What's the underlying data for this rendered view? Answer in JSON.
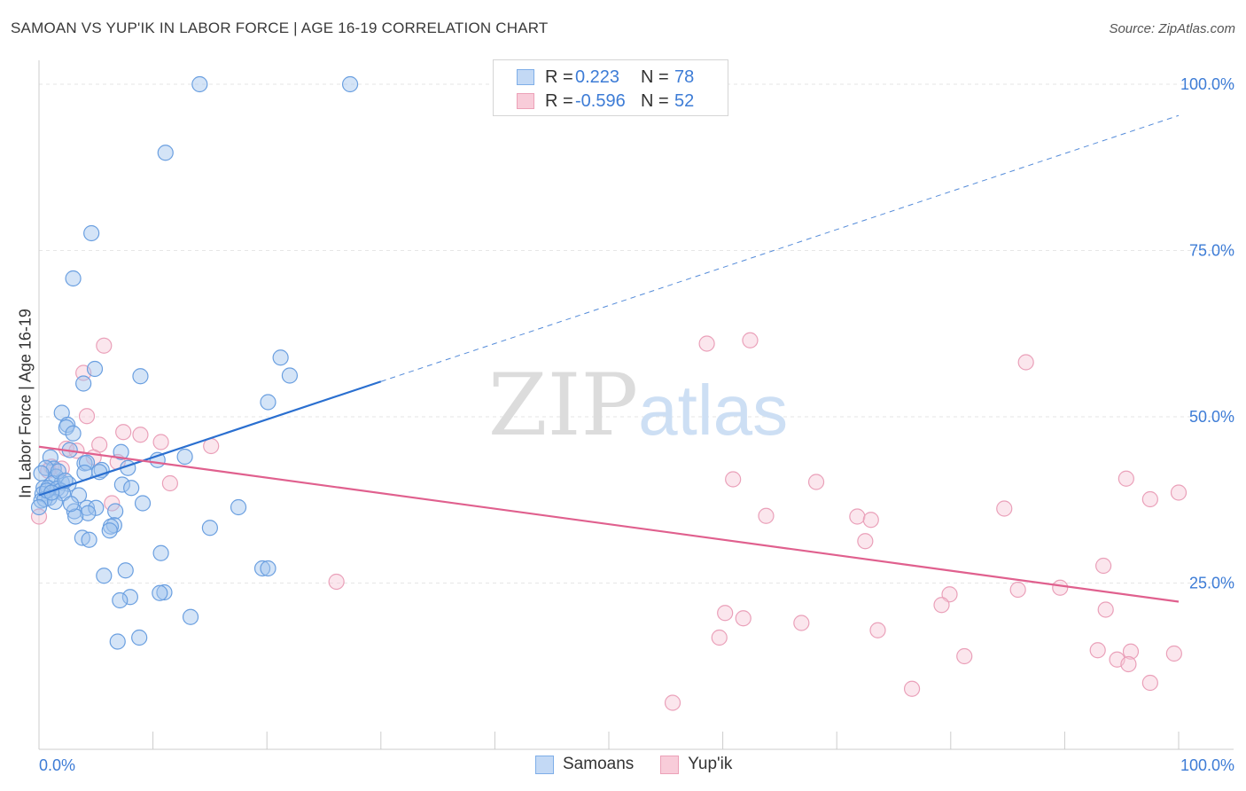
{
  "header": {
    "title": "SAMOAN VS YUP'IK IN LABOR FORCE | AGE 16-19 CORRELATION CHART",
    "source": "Source: ZipAtlas.com"
  },
  "watermark": {
    "part1": "ZIP",
    "part2": "atlas"
  },
  "legend": {
    "rows": [
      {
        "r_label": "R =",
        "r_value": "0.223",
        "n_label": "N =",
        "n_value": "78",
        "color": "#7eaee8",
        "fill": "#c3d9f5"
      },
      {
        "r_label": "R =",
        "r_value": "-0.596",
        "n_label": "N =",
        "n_value": "52",
        "color": "#eca1b8",
        "fill": "#f8ccd9"
      }
    ]
  },
  "bottom_legend": {
    "samoans": "Samoans",
    "yupik": "Yup'ik"
  },
  "colors": {
    "samoan_stroke": "#6a9fe0",
    "samoan_fill": "rgba(160,195,238,0.45)",
    "samoan_line": "#2a6fd0",
    "yupik_stroke": "#eaa0b9",
    "yupik_fill": "rgba(247,200,214,0.45)",
    "yupik_line": "#e0608e",
    "tick_label": "#3d7cd6"
  },
  "chart_data": {
    "type": "scatter",
    "title": "SAMOAN VS YUP'IK IN LABOR FORCE | AGE 16-19 CORRELATION CHART",
    "xlabel": "",
    "ylabel": "In Labor Force | Age 16-19",
    "xlim": [
      0,
      100
    ],
    "ylim": [
      0,
      102
    ],
    "x_tick_labels": [
      "0.0%",
      "100.0%"
    ],
    "y_ticks": [
      25,
      50,
      75,
      100
    ],
    "y_tick_labels": [
      "25.0%",
      "50.0%",
      "75.0%",
      "100.0%"
    ],
    "series": [
      {
        "name": "Samoans",
        "r": 0.223,
        "n": 78,
        "trend": {
          "x0": 0,
          "y0": 38.2,
          "x1": 30,
          "y1": 55.3,
          "dash_to_x": 100,
          "dash_to_y": 95.3
        },
        "points": [
          [
            14.1,
            100.0
          ],
          [
            27.3,
            100.0
          ],
          [
            11.1,
            89.7
          ],
          [
            4.6,
            77.6
          ],
          [
            3.0,
            70.8
          ],
          [
            21.2,
            58.9
          ],
          [
            22.0,
            56.2
          ],
          [
            8.9,
            56.1
          ],
          [
            4.9,
            57.2
          ],
          [
            3.9,
            55.0
          ],
          [
            20.1,
            52.2
          ],
          [
            2.0,
            50.6
          ],
          [
            2.5,
            48.8
          ],
          [
            2.4,
            48.4
          ],
          [
            3.0,
            47.5
          ],
          [
            2.7,
            45.0
          ],
          [
            7.2,
            44.7
          ],
          [
            12.8,
            44.0
          ],
          [
            10.4,
            43.5
          ],
          [
            1.0,
            43.9
          ],
          [
            4.0,
            43.0
          ],
          [
            4.2,
            43.1
          ],
          [
            1.3,
            42.2
          ],
          [
            0.6,
            42.3
          ],
          [
            7.8,
            42.3
          ],
          [
            5.5,
            42.0
          ],
          [
            5.3,
            41.7
          ],
          [
            4.0,
            41.6
          ],
          [
            1.5,
            41.0
          ],
          [
            2.0,
            40.1
          ],
          [
            2.6,
            39.9
          ],
          [
            7.3,
            39.8
          ],
          [
            1.2,
            40.0
          ],
          [
            0.4,
            39.3
          ],
          [
            0.8,
            39.3
          ],
          [
            1.6,
            39.2
          ],
          [
            1.9,
            38.9
          ],
          [
            2.1,
            38.5
          ],
          [
            8.1,
            39.3
          ],
          [
            0.3,
            38.4
          ],
          [
            3.5,
            38.2
          ],
          [
            0.9,
            37.8
          ],
          [
            0.2,
            37.4
          ],
          [
            0.5,
            37.6
          ],
          [
            1.4,
            37.2
          ],
          [
            9.1,
            37.0
          ],
          [
            0.0,
            36.4
          ],
          [
            4.2,
            36.3
          ],
          [
            5.0,
            36.3
          ],
          [
            17.5,
            36.4
          ],
          [
            3.1,
            35.8
          ],
          [
            6.7,
            35.8
          ],
          [
            4.3,
            35.5
          ],
          [
            3.2,
            35.0
          ],
          [
            6.6,
            33.7
          ],
          [
            6.3,
            33.5
          ],
          [
            15.0,
            33.3
          ],
          [
            6.2,
            32.9
          ],
          [
            3.8,
            31.8
          ],
          [
            4.4,
            31.5
          ],
          [
            10.7,
            29.5
          ],
          [
            19.6,
            27.2
          ],
          [
            20.1,
            27.2
          ],
          [
            7.6,
            26.9
          ],
          [
            5.7,
            26.1
          ],
          [
            11.0,
            23.6
          ],
          [
            10.6,
            23.5
          ],
          [
            8.0,
            22.9
          ],
          [
            7.1,
            22.4
          ],
          [
            13.3,
            19.9
          ],
          [
            8.8,
            16.8
          ],
          [
            6.9,
            16.2
          ],
          [
            0.2,
            41.5
          ],
          [
            1.7,
            41.8
          ],
          [
            2.3,
            40.4
          ],
          [
            0.7,
            38.9
          ],
          [
            1.1,
            38.6
          ],
          [
            2.8,
            36.9
          ]
        ]
      },
      {
        "name": "Yup'ik",
        "r": -0.596,
        "n": 52,
        "trend": {
          "x0": 0,
          "y0": 45.5,
          "x1": 100,
          "y1": 22.2
        },
        "points": [
          [
            5.7,
            60.7
          ],
          [
            62.4,
            61.5
          ],
          [
            58.6,
            61.0
          ],
          [
            86.6,
            58.2
          ],
          [
            3.9,
            56.6
          ],
          [
            4.2,
            50.1
          ],
          [
            7.4,
            47.7
          ],
          [
            8.9,
            47.3
          ],
          [
            10.7,
            46.2
          ],
          [
            5.3,
            45.8
          ],
          [
            15.1,
            45.6
          ],
          [
            2.4,
            45.2
          ],
          [
            3.3,
            44.9
          ],
          [
            4.8,
            43.9
          ],
          [
            6.9,
            43.2
          ],
          [
            1.1,
            42.5
          ],
          [
            2.0,
            42.2
          ],
          [
            0.8,
            41.9
          ],
          [
            60.9,
            40.6
          ],
          [
            95.4,
            40.7
          ],
          [
            68.2,
            40.2
          ],
          [
            11.5,
            40.0
          ],
          [
            100.0,
            38.6
          ],
          [
            97.5,
            37.6
          ],
          [
            6.4,
            37.0
          ],
          [
            84.7,
            36.2
          ],
          [
            63.8,
            35.1
          ],
          [
            71.8,
            35.0
          ],
          [
            73.0,
            34.5
          ],
          [
            0.0,
            35.0
          ],
          [
            72.5,
            31.3
          ],
          [
            93.4,
            27.6
          ],
          [
            26.1,
            25.2
          ],
          [
            85.9,
            24.0
          ],
          [
            89.6,
            24.3
          ],
          [
            79.9,
            23.3
          ],
          [
            79.2,
            21.7
          ],
          [
            93.6,
            21.0
          ],
          [
            60.2,
            20.5
          ],
          [
            61.8,
            19.7
          ],
          [
            66.9,
            19.0
          ],
          [
            73.6,
            17.9
          ],
          [
            59.7,
            16.8
          ],
          [
            92.9,
            14.9
          ],
          [
            95.8,
            14.7
          ],
          [
            81.2,
            14.0
          ],
          [
            94.6,
            13.5
          ],
          [
            95.6,
            12.8
          ],
          [
            99.6,
            14.4
          ],
          [
            97.5,
            10.0
          ],
          [
            76.6,
            9.1
          ],
          [
            55.6,
            7.0
          ]
        ]
      }
    ]
  }
}
